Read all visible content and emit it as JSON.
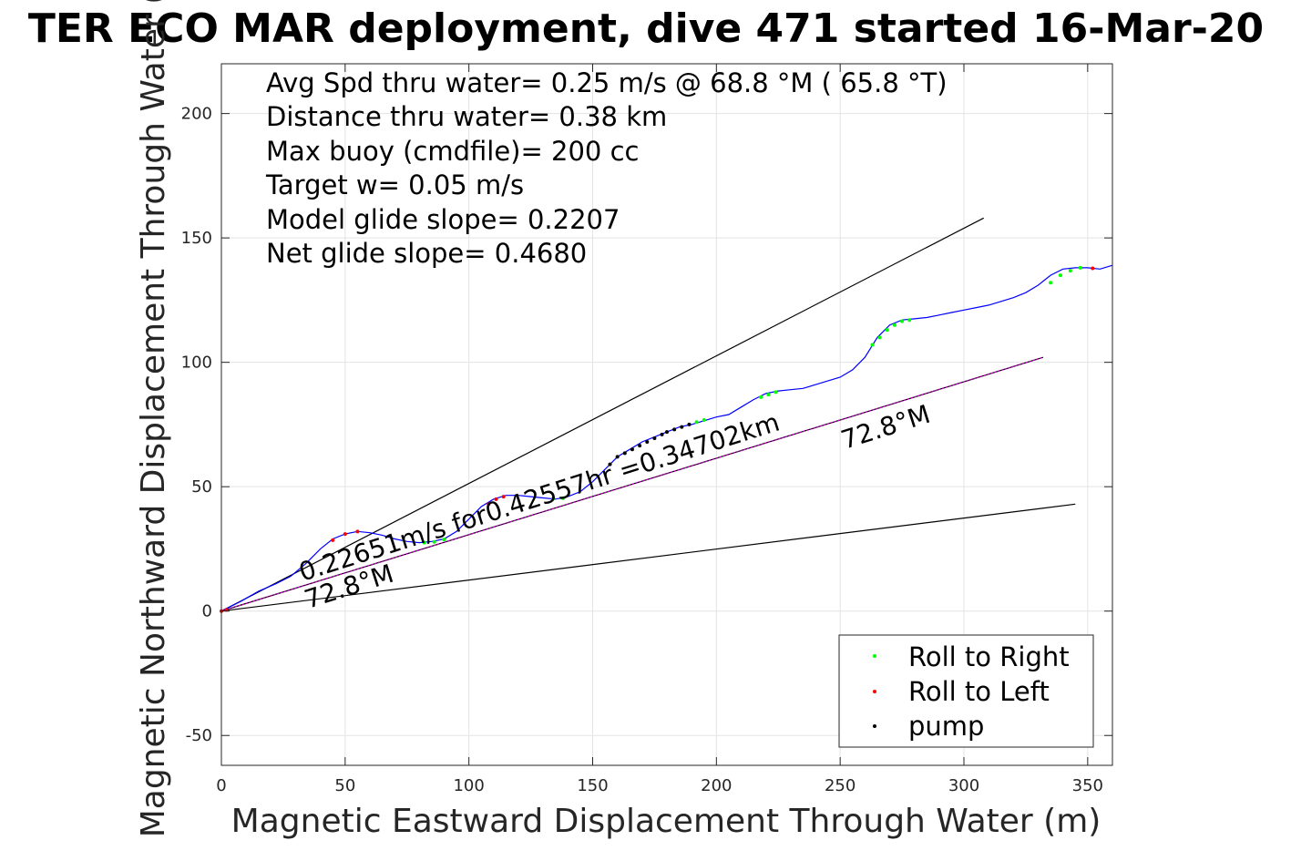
{
  "chart_data": {
    "type": "line",
    "title": "TER ECO MAR deployment, dive 471 started 16-Mar-20",
    "xlabel": "Magnetic Eastward Displacement Through Water (m)",
    "ylabel": "Magnetic Northward Displacement Through Water (",
    "xlim": [
      0,
      360
    ],
    "ylim": [
      -62,
      220
    ],
    "xticks": [
      0,
      50,
      100,
      150,
      200,
      250,
      300,
      350
    ],
    "yticks": [
      -50,
      0,
      50,
      100,
      150,
      200
    ],
    "grid": true,
    "info_lines": [
      "Avg Spd thru water=  0.25 m/s @  68.8 °M ( 65.8 °T)",
      "Distance thru water=  0.38 km",
      "Max buoy (cmdfile)= 200 cc",
      "Target w= 0.05 m/s",
      "Model glide slope= 0.2207",
      "Net glide slope= 0.4680"
    ],
    "annotations": {
      "speed_text": "0.22651m/s for0.42557hr =0.34702km",
      "heading_low": "72.8°M",
      "heading_high": "72.8°M"
    },
    "track": {
      "name": "track",
      "color": "#0000ff",
      "x": [
        0,
        8,
        15,
        22,
        28,
        34,
        40,
        45,
        50,
        55,
        60,
        65,
        70,
        75,
        80,
        85,
        90,
        95,
        100,
        105,
        110,
        115,
        120,
        125,
        130,
        135,
        140,
        145,
        150,
        155,
        160,
        165,
        170,
        175,
        180,
        185,
        190,
        195,
        200,
        205,
        210,
        215,
        220,
        225,
        230,
        235,
        240,
        245,
        250,
        255,
        260,
        265,
        270,
        275,
        280,
        285,
        290,
        295,
        300,
        305,
        310,
        315,
        320,
        325,
        330,
        335,
        340,
        345,
        350,
        355,
        360
      ],
      "y": [
        0,
        4,
        8,
        11,
        14,
        19,
        25,
        29,
        31,
        32,
        31.5,
        30.5,
        29,
        28,
        27.5,
        28,
        29,
        32,
        37,
        42,
        45,
        46.5,
        46.5,
        46,
        45.5,
        45,
        46,
        48,
        52,
        57,
        62,
        65,
        68,
        70,
        72,
        74,
        75,
        76.5,
        78,
        79,
        82,
        85,
        87.5,
        88.5,
        89,
        89.5,
        91,
        92.5,
        94,
        97,
        102,
        110,
        115,
        117,
        117.5,
        118,
        119,
        120,
        121,
        122,
        123,
        124.5,
        126,
        128,
        131,
        135,
        137.5,
        138,
        138,
        137.5,
        139
      ]
    },
    "lines": [
      {
        "name": "upper",
        "color": "#000000",
        "x": [
          0,
          308
        ],
        "y": [
          0,
          158
        ]
      },
      {
        "name": "lower",
        "color": "#000000",
        "x": [
          0,
          345
        ],
        "y": [
          0,
          43
        ]
      },
      {
        "name": "net-heading",
        "color": "#000000",
        "x": [
          0,
          332
        ],
        "y": [
          0,
          102
        ]
      },
      {
        "name": "net-heading-overlay",
        "color": "#cc00cc",
        "x": [
          0,
          332
        ],
        "y": [
          0,
          102
        ]
      }
    ],
    "markers": [
      {
        "name": "Roll to Right",
        "color": "#00ff00",
        "x": [
          82,
          86,
          90,
          134,
          138,
          192,
          195,
          218,
          221,
          224,
          263,
          266,
          269,
          272,
          275,
          278,
          335,
          339,
          343,
          347
        ],
        "y": [
          27.5,
          27.8,
          28.8,
          45.2,
          45.4,
          76,
          76.8,
          86,
          87,
          88,
          107,
          110,
          113,
          115,
          116.5,
          117,
          132,
          135,
          136.8,
          138
        ]
      },
      {
        "name": "Roll to Left",
        "color": "#ff0000",
        "x": [
          0,
          2,
          45,
          50,
          55,
          108,
          111,
          114,
          352
        ],
        "y": [
          0,
          0.5,
          28.5,
          31,
          32,
          43,
          45,
          46,
          137.8
        ]
      },
      {
        "name": "pump",
        "color": "#000000",
        "x": [
          157,
          160,
          163,
          166,
          169,
          172,
          175,
          178,
          180,
          183,
          186,
          189
        ],
        "y": [
          59,
          62,
          63.5,
          65,
          66.5,
          68,
          69.5,
          71,
          72,
          73,
          74,
          75
        ]
      }
    ],
    "legend": {
      "position": "bottom-right",
      "entries": [
        {
          "label": "Roll to Right",
          "color": "#00ff00"
        },
        {
          "label": "Roll to Left",
          "color": "#ff0000"
        },
        {
          "label": "pump",
          "color": "#000000"
        }
      ]
    }
  }
}
